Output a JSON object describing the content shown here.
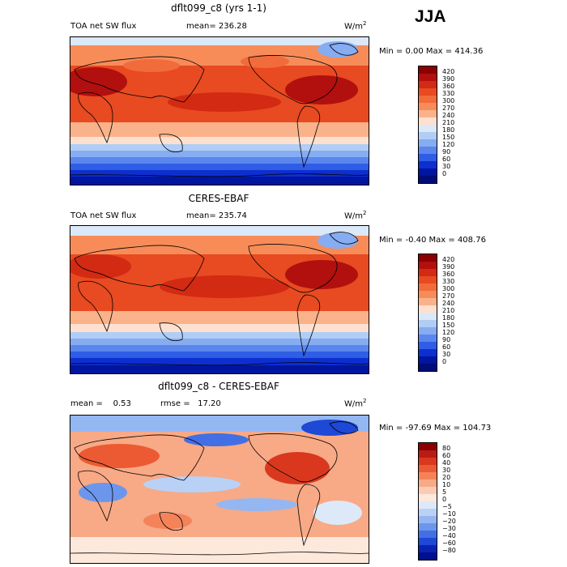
{
  "season": "JJA",
  "panels": [
    {
      "title": "dflt099_c8 (yrs 1-1)",
      "left_label": "TOA net SW flux",
      "center_label": "mean= 236.28",
      "unit_base": "W/m",
      "unit_exp": "2",
      "minmax": "Min =    0.00 Max = 414.36",
      "levels": [
        "420",
        "390",
        "360",
        "330",
        "300",
        "270",
        "240",
        "210",
        "180",
        "150",
        "120",
        "90",
        "60",
        "30",
        "0"
      ],
      "colors": [
        "#8b0000",
        "#b20f0f",
        "#d32a13",
        "#e84a21",
        "#f26b3b",
        "#f78c59",
        "#fab28a",
        "#fde0cf",
        "#dbe8f8",
        "#b0cdf5",
        "#86acf2",
        "#5a86ee",
        "#2f5de6",
        "#0d2fd0",
        "#0015a0",
        "#000c78"
      ]
    },
    {
      "title": "CERES-EBAF",
      "left_label": "TOA net SW flux",
      "center_label": "mean= 235.74",
      "unit_base": "W/m",
      "unit_exp": "2",
      "minmax": "Min =  -0.40 Max = 408.76",
      "levels": [
        "420",
        "390",
        "360",
        "330",
        "300",
        "270",
        "240",
        "210",
        "180",
        "150",
        "120",
        "90",
        "60",
        "30",
        "0"
      ],
      "colors": [
        "#8b0000",
        "#b20f0f",
        "#d32a13",
        "#e84a21",
        "#f26b3b",
        "#f78c59",
        "#fab28a",
        "#fde0cf",
        "#dbe8f8",
        "#b0cdf5",
        "#86acf2",
        "#5a86ee",
        "#2f5de6",
        "#0d2fd0",
        "#0015a0",
        "#000c78"
      ]
    },
    {
      "title": "dflt099_c8 - CERES-EBAF",
      "left_label": "mean =    0.53",
      "center_label": "rmse =   17.20",
      "unit_base": "W/m",
      "unit_exp": "2",
      "minmax": "Min = -97.69 Max = 104.73",
      "levels": [
        "80",
        "60",
        "40",
        "30",
        "20",
        "10",
        "5",
        "0",
        "−5",
        "−10",
        "−20",
        "−30",
        "−40",
        "−60",
        "−80"
      ],
      "colors": [
        "#8b0000",
        "#b81c14",
        "#d9381e",
        "#ec5a33",
        "#f4835a",
        "#f8a986",
        "#fbcbb5",
        "#fde8dc",
        "#dde9f8",
        "#b9d1f5",
        "#94b7f1",
        "#6c96ec",
        "#426fe4",
        "#1e48d6",
        "#0a22b2",
        "#00108c"
      ]
    }
  ]
}
